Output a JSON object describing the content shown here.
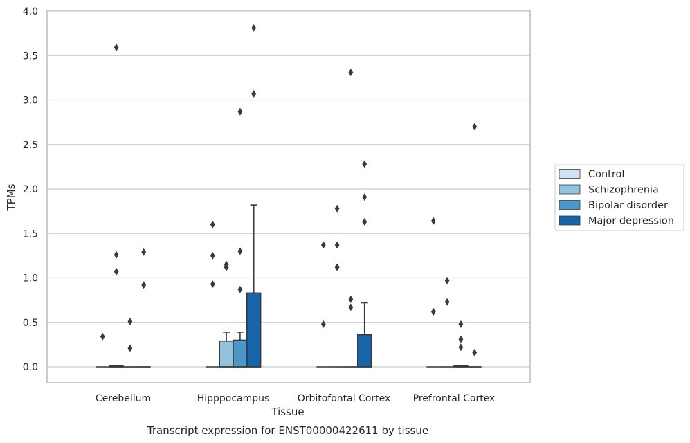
{
  "chart_data": {
    "type": "box",
    "caption": "Transcript expression for ENST00000422611 by tissue",
    "xlabel": "Tissue",
    "ylabel": "TPMs",
    "ylim": [
      -0.18,
      4.0
    ],
    "yticks": [
      0.0,
      0.5,
      1.0,
      1.5,
      2.0,
      2.5,
      3.0,
      3.5,
      4.0
    ],
    "ytick_labels": [
      "0.0",
      "0.5",
      "1.0",
      "1.5",
      "2.0",
      "2.5",
      "3.0",
      "3.5",
      "4.0"
    ],
    "grid": "horizontal",
    "legend_position": "right",
    "categories": [
      "Cerebellum",
      "Hipppocampus",
      "Orbitofontal Cortex",
      "Prefrontal Cortex"
    ],
    "series": [
      {
        "name": "Control",
        "color": "#cfe1f2",
        "boxes": [
          {
            "q1": 0,
            "median": 0,
            "q3": 0,
            "whisker_low": 0,
            "whisker_high": 0,
            "outliers": [
              0.34
            ]
          },
          {
            "q1": 0,
            "median": 0,
            "q3": 0,
            "whisker_low": 0,
            "whisker_high": 0,
            "outliers": [
              0.93,
              1.25,
              1.6
            ]
          },
          {
            "q1": 0,
            "median": 0,
            "q3": 0,
            "whisker_low": 0,
            "whisker_high": 0,
            "outliers": [
              0.48,
              1.37
            ]
          },
          {
            "q1": 0,
            "median": 0,
            "q3": 0,
            "whisker_low": 0,
            "whisker_high": 0,
            "outliers": [
              0.62,
              1.64
            ]
          }
        ]
      },
      {
        "name": "Schizophrenia",
        "color": "#93c4de",
        "boxes": [
          {
            "q1": 0,
            "median": 0,
            "q3": 0.01,
            "whisker_low": 0,
            "whisker_high": 0.01,
            "outliers": [
              1.07,
              1.26,
              3.59
            ]
          },
          {
            "q1": 0,
            "median": 0,
            "q3": 0.29,
            "whisker_low": 0,
            "whisker_high": 0.39,
            "outliers": [
              1.12,
              1.15
            ]
          },
          {
            "q1": 0,
            "median": 0,
            "q3": 0,
            "whisker_low": 0,
            "whisker_high": 0,
            "outliers": [
              1.12,
              1.37,
              1.78
            ]
          },
          {
            "q1": 0,
            "median": 0,
            "q3": 0,
            "whisker_low": 0,
            "whisker_high": 0,
            "outliers": [
              0.73,
              0.97
            ]
          }
        ]
      },
      {
        "name": "Bipolar disorder",
        "color": "#4a98c9",
        "boxes": [
          {
            "q1": 0,
            "median": 0,
            "q3": 0,
            "whisker_low": 0,
            "whisker_high": 0,
            "outliers": [
              0.21,
              0.51
            ]
          },
          {
            "q1": 0,
            "median": 0,
            "q3": 0.3,
            "whisker_low": 0,
            "whisker_high": 0.39,
            "outliers": [
              0.87,
              1.3,
              2.87
            ]
          },
          {
            "q1": 0,
            "median": 0,
            "q3": 0,
            "whisker_low": 0,
            "whisker_high": 0,
            "outliers": [
              0.67,
              0.76,
              3.31
            ]
          },
          {
            "q1": 0,
            "median": 0,
            "q3": 0.01,
            "whisker_low": 0,
            "whisker_high": 0.01,
            "outliers": [
              0.22,
              0.31,
              0.48
            ]
          }
        ]
      },
      {
        "name": "Major depression",
        "color": "#1764ab",
        "boxes": [
          {
            "q1": 0,
            "median": 0,
            "q3": 0,
            "whisker_low": 0,
            "whisker_high": 0,
            "outliers": [
              0.92,
              1.29
            ]
          },
          {
            "q1": 0,
            "median": 0,
            "q3": 0.83,
            "whisker_low": 0,
            "whisker_high": 1.82,
            "outliers": [
              3.07,
              3.81
            ]
          },
          {
            "q1": 0,
            "median": 0,
            "q3": 0.36,
            "whisker_low": 0,
            "whisker_high": 0.72,
            "outliers": [
              1.63,
              1.91,
              2.28
            ]
          },
          {
            "q1": 0,
            "median": 0,
            "q3": 0,
            "whisker_low": 0,
            "whisker_high": 0,
            "outliers": [
              0.16,
              2.7
            ]
          }
        ]
      }
    ]
  }
}
